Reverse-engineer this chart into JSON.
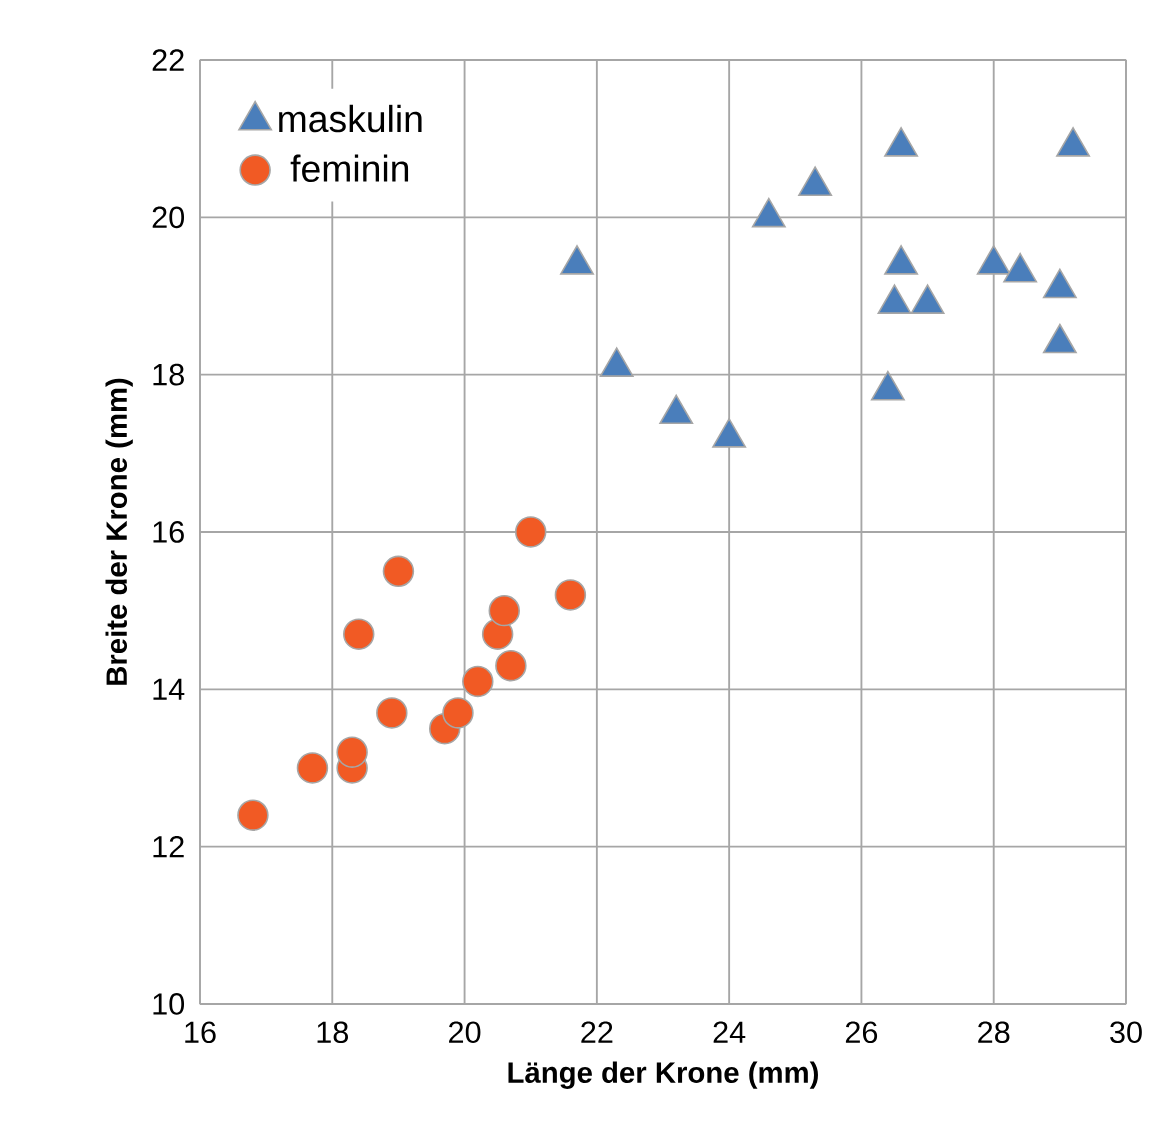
{
  "chart_data": {
    "type": "scatter",
    "xlabel": "Länge der Krone (mm)",
    "ylabel": "Breite der Krone (mm)",
    "xlim": [
      16,
      30
    ],
    "ylim": [
      10,
      22
    ],
    "xticks": [
      16,
      18,
      20,
      22,
      24,
      26,
      28,
      30
    ],
    "yticks": [
      10,
      12,
      14,
      16,
      18,
      20,
      22
    ],
    "grid": true,
    "legend": "top left",
    "series": [
      {
        "name": "maskulin",
        "color": "#4a7ebb",
        "marker": "triangle",
        "x": [
          21.7,
          22.3,
          23.2,
          24.0,
          24.6,
          25.3,
          26.4,
          26.5,
          26.6,
          26.6,
          27.0,
          28.0,
          28.4,
          29.0,
          29.0,
          29.2
        ],
        "values": [
          19.4,
          18.1,
          17.5,
          17.2,
          20.0,
          20.4,
          17.8,
          18.9,
          19.4,
          20.9,
          18.9,
          19.4,
          19.3,
          19.1,
          18.4,
          20.9
        ]
      },
      {
        "name": "feminin",
        "color": "#f15a24",
        "marker": "circle",
        "x": [
          16.8,
          17.7,
          18.3,
          18.3,
          18.4,
          18.9,
          19.0,
          19.7,
          19.9,
          20.2,
          20.5,
          20.6,
          20.7,
          21.0,
          21.6
        ],
        "values": [
          12.4,
          13.0,
          13.0,
          13.2,
          14.7,
          13.7,
          15.5,
          13.5,
          13.7,
          14.1,
          14.7,
          15.0,
          14.3,
          16.0,
          15.2
        ]
      }
    ]
  }
}
